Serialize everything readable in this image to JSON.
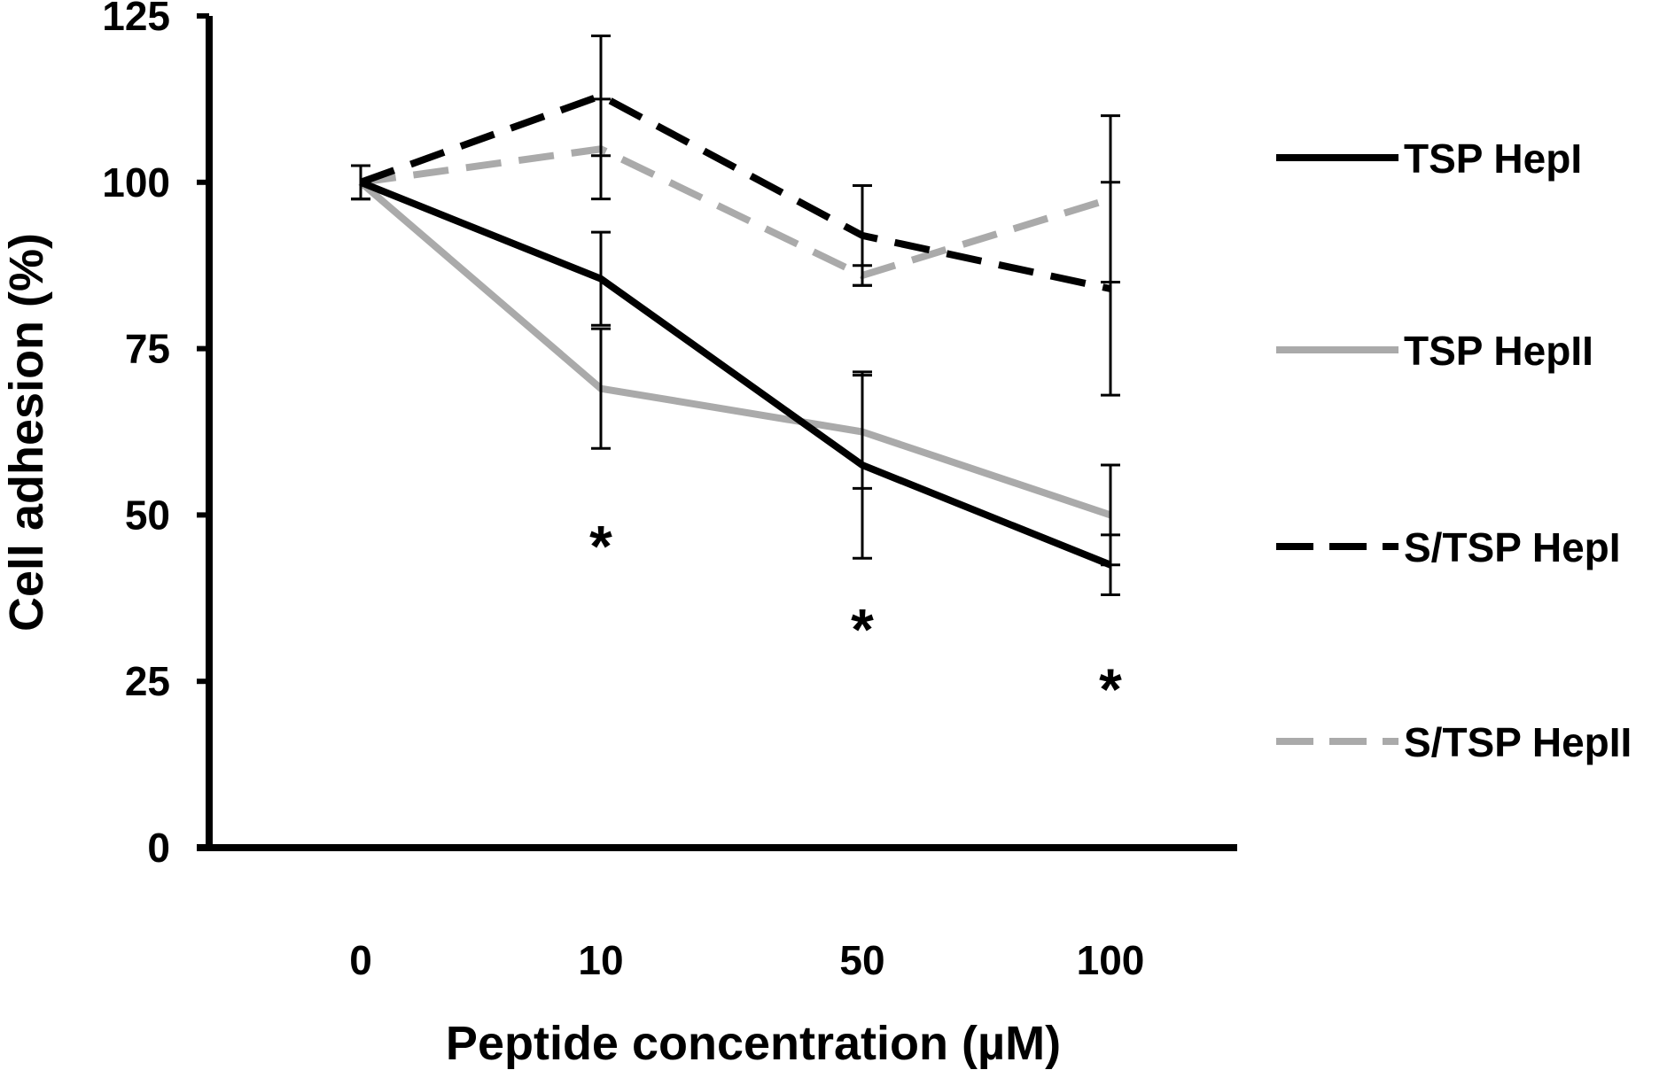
{
  "chart_data": {
    "type": "line",
    "title": "",
    "xlabel": "Peptide concentration (µM)",
    "ylabel": "Cell adhesion (%)",
    "categories": [
      "0",
      "10",
      "50",
      "100"
    ],
    "ylim": [
      0,
      125
    ],
    "yticks": [
      "0",
      "25",
      "50",
      "75",
      "100",
      "125"
    ],
    "grid": false,
    "legend_position": "right",
    "series": [
      {
        "name": "TSP HepI",
        "values": [
          100,
          85.5,
          57.5,
          42.5
        ],
        "error": [
          2.5,
          7,
          14,
          4.5
        ],
        "color": "#000000",
        "dashed": false
      },
      {
        "name": "TSP HepII",
        "values": [
          100,
          69,
          62.5,
          50
        ],
        "error": [
          2.5,
          9,
          8.5,
          7.5
        ],
        "color": "#aaaaaa",
        "dashed": false
      },
      {
        "name": "S/TSP HepI",
        "values": [
          100,
          113,
          92,
          84
        ],
        "error": [
          2.5,
          9,
          7.5,
          16
        ],
        "color": "#000000",
        "dashed": true
      },
      {
        "name": "S/TSP HepII",
        "values": [
          100,
          105,
          86,
          97.5
        ],
        "error": [
          2.5,
          7.5,
          1.5,
          12.5
        ],
        "color": "#aaaaaa",
        "dashed": true
      }
    ],
    "annotations": [
      {
        "text": "*",
        "category": "10",
        "y": 46
      },
      {
        "text": "*",
        "category": "50",
        "y": 33.5
      },
      {
        "text": "*",
        "category": "100",
        "y": 24.5
      }
    ]
  }
}
